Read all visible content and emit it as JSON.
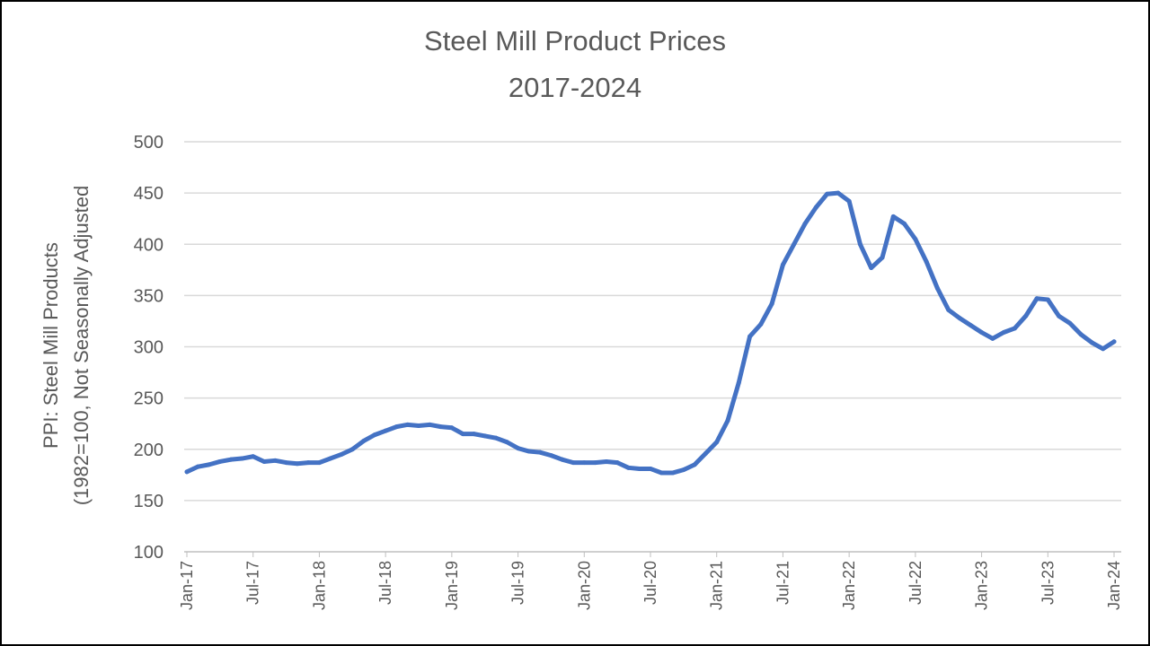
{
  "chart_data": {
    "type": "line",
    "title": "Steel Mill Product Prices",
    "subtitle": "2017-2024",
    "ylabel_line1": "PPI: Steel Mill Products",
    "ylabel_line2": "(1982=100, Not Seasonally Adjusted",
    "ylim": [
      100,
      500
    ],
    "yticks": [
      "100",
      "150",
      "200",
      "250",
      "300",
      "350",
      "400",
      "450",
      "500"
    ],
    "xticks": [
      "Jan-17",
      "Jul-17",
      "Jan-18",
      "Jul-18",
      "Jan-19",
      "Jul-19",
      "Jan-20",
      "Jul-20",
      "Jan-21",
      "Jul-21",
      "Jan-22",
      "Jul-22",
      "Jan-23",
      "Jul-23",
      "Jan-24"
    ],
    "grid": true,
    "legend": "none",
    "line_color": "#4472C4",
    "series": [
      {
        "x": [
          "2017-01",
          "2017-02",
          "2017-03",
          "2017-04",
          "2017-05",
          "2017-06",
          "2017-07",
          "2017-08",
          "2017-09",
          "2017-10",
          "2017-11",
          "2017-12",
          "2018-01",
          "2018-02",
          "2018-03",
          "2018-04",
          "2018-05",
          "2018-06",
          "2018-07",
          "2018-08",
          "2018-09",
          "2018-10",
          "2018-11",
          "2018-12",
          "2019-01",
          "2019-02",
          "2019-03",
          "2019-04",
          "2019-05",
          "2019-06",
          "2019-07",
          "2019-08",
          "2019-09",
          "2019-10",
          "2019-11",
          "2019-12",
          "2020-01",
          "2020-02",
          "2020-03",
          "2020-04",
          "2020-05",
          "2020-06",
          "2020-07",
          "2020-08",
          "2020-09",
          "2020-10",
          "2020-11",
          "2020-12",
          "2021-01",
          "2021-02",
          "2021-03",
          "2021-04",
          "2021-05",
          "2021-06",
          "2021-07",
          "2021-08",
          "2021-09",
          "2021-10",
          "2021-11",
          "2021-12",
          "2022-01",
          "2022-02",
          "2022-03",
          "2022-04",
          "2022-05",
          "2022-06",
          "2022-07",
          "2022-08",
          "2022-09",
          "2022-10",
          "2022-11",
          "2022-12",
          "2023-01",
          "2023-02",
          "2023-03",
          "2023-04",
          "2023-05",
          "2023-06",
          "2023-07",
          "2023-08",
          "2023-09",
          "2023-10",
          "2023-11",
          "2023-12",
          "2024-01"
        ],
        "values": [
          178,
          183,
          185,
          188,
          190,
          191,
          193,
          188,
          189,
          187,
          186,
          187,
          187,
          191,
          195,
          200,
          208,
          214,
          218,
          222,
          224,
          223,
          224,
          222,
          221,
          215,
          215,
          213,
          211,
          207,
          201,
          198,
          197,
          194,
          190,
          187,
          187,
          187,
          188,
          187,
          182,
          181,
          181,
          177,
          177,
          180,
          185,
          196,
          207,
          228,
          265,
          310,
          322,
          342,
          380,
          400,
          420,
          436,
          449,
          450,
          442,
          400,
          377,
          387,
          427,
          420,
          405,
          383,
          357,
          336,
          328,
          321,
          314,
          308,
          314,
          318,
          330,
          347,
          346,
          330,
          323,
          312,
          304,
          298,
          305
        ]
      }
    ]
  }
}
